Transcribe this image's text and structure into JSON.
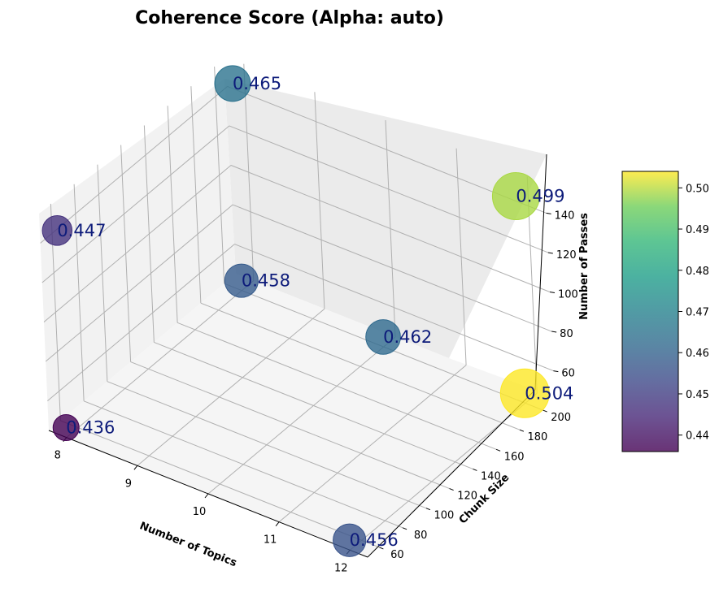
{
  "chart_data": {
    "type": "scatter",
    "title": "Coherence Score (Alpha: auto)",
    "xlabel": "Number of Topics",
    "ylabel": "Chunk Size",
    "zlabel": "Number of Passes",
    "x_ticks": [
      "8",
      "9",
      "10",
      "11",
      "12"
    ],
    "y_ticks": [
      "60",
      "80",
      "100",
      "120",
      "140",
      "160",
      "180",
      "200"
    ],
    "z_ticks": [
      "60",
      "80",
      "100",
      "120",
      "140"
    ],
    "colorbar_ticks": [
      "0.44",
      "0.45",
      "0.46",
      "0.47",
      "0.48",
      "0.49",
      "0.50"
    ],
    "colorbar_range": [
      0.436,
      0.504
    ],
    "grid": true,
    "points": [
      {
        "x": 8,
        "y": 50,
        "z": 50,
        "value": 0.436,
        "label": "0.436"
      },
      {
        "x": 8,
        "y": 50,
        "z": 150,
        "value": 0.447,
        "label": "0.447"
      },
      {
        "x": 8,
        "y": 200,
        "z": 150,
        "value": 0.465,
        "label": "0.465"
      },
      {
        "x": 8,
        "y": 200,
        "z": 50,
        "value": 0.458,
        "label": "0.458"
      },
      {
        "x": 12,
        "y": 50,
        "z": 50,
        "value": 0.456,
        "label": "0.456"
      },
      {
        "x": 12,
        "y": 200,
        "z": 50,
        "value": 0.504,
        "label": "0.504"
      },
      {
        "x": 12,
        "y": 200,
        "z": 150,
        "value": 0.499,
        "label": "0.499"
      },
      {
        "x": 10,
        "y": 200,
        "z": 50,
        "value": 0.462,
        "label": "0.462"
      }
    ]
  }
}
